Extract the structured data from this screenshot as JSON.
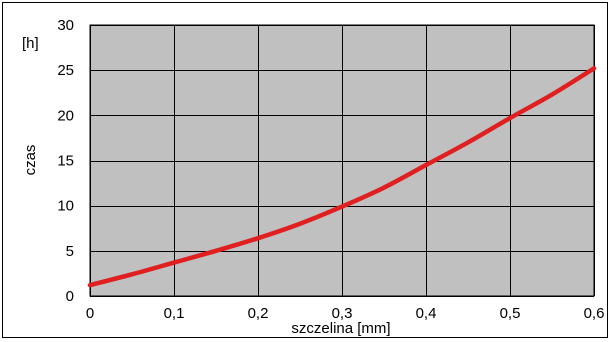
{
  "chart_data": {
    "type": "line",
    "title": "",
    "xlabel": "szczelina [mm]",
    "ylabel": "czas",
    "yunit": "[h]",
    "xlim": [
      0,
      0.6
    ],
    "ylim": [
      0,
      30
    ],
    "xticks": [
      0,
      0.1,
      0.2,
      0.3,
      0.4,
      0.5,
      0.6
    ],
    "xtick_labels": [
      "0",
      "0,1",
      "0,2",
      "0,3",
      "0,4",
      "0,5",
      "0,6"
    ],
    "yticks": [
      0,
      5,
      10,
      15,
      20,
      25,
      30
    ],
    "ytick_labels": [
      "0",
      "5",
      "10",
      "15",
      "20",
      "25",
      "30"
    ],
    "grid": true,
    "plot_background": "#c0c0c0",
    "grid_color": "#000000",
    "series": [
      {
        "color": "#e02020",
        "x": [
          0,
          0.05,
          0.1,
          0.15,
          0.2,
          0.25,
          0.3,
          0.35,
          0.4,
          0.45,
          0.5,
          0.55,
          0.6
        ],
        "y": [
          1.2,
          2.4,
          3.7,
          5.0,
          6.4,
          8.0,
          9.9,
          12.0,
          14.5,
          17.0,
          19.7,
          22.3,
          25.2
        ]
      }
    ]
  }
}
